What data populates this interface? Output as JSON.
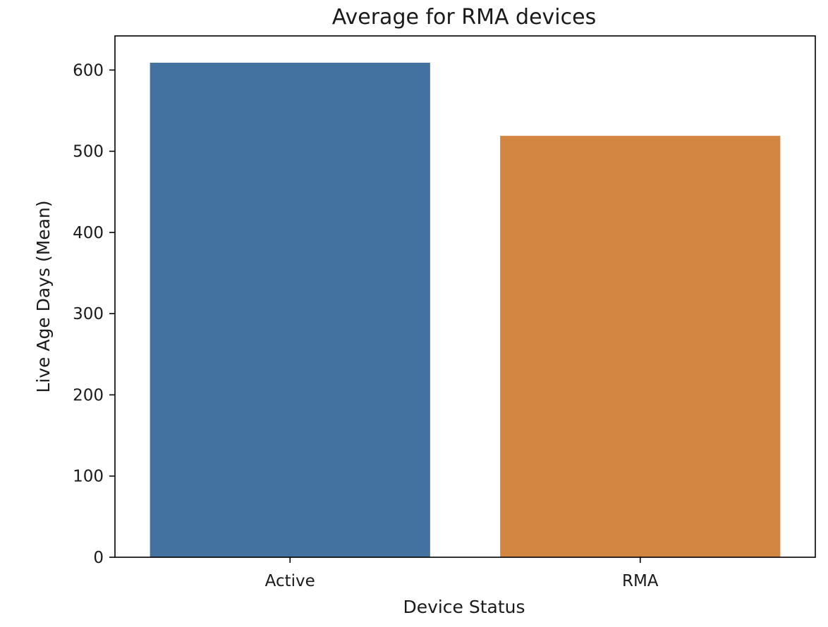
{
  "chart_data": {
    "type": "bar",
    "title": "Average for RMA devices",
    "xlabel": "Device Status",
    "ylabel": "Live Age Days (Mean)",
    "categories": [
      "Active",
      "RMA"
    ],
    "values": [
      609,
      519
    ],
    "colors": [
      "#4472a0",
      "#d38641"
    ],
    "ylim": [
      0,
      642
    ],
    "yticks": [
      0,
      100,
      200,
      300,
      400,
      500,
      600
    ],
    "grid": false,
    "legend": "none"
  }
}
